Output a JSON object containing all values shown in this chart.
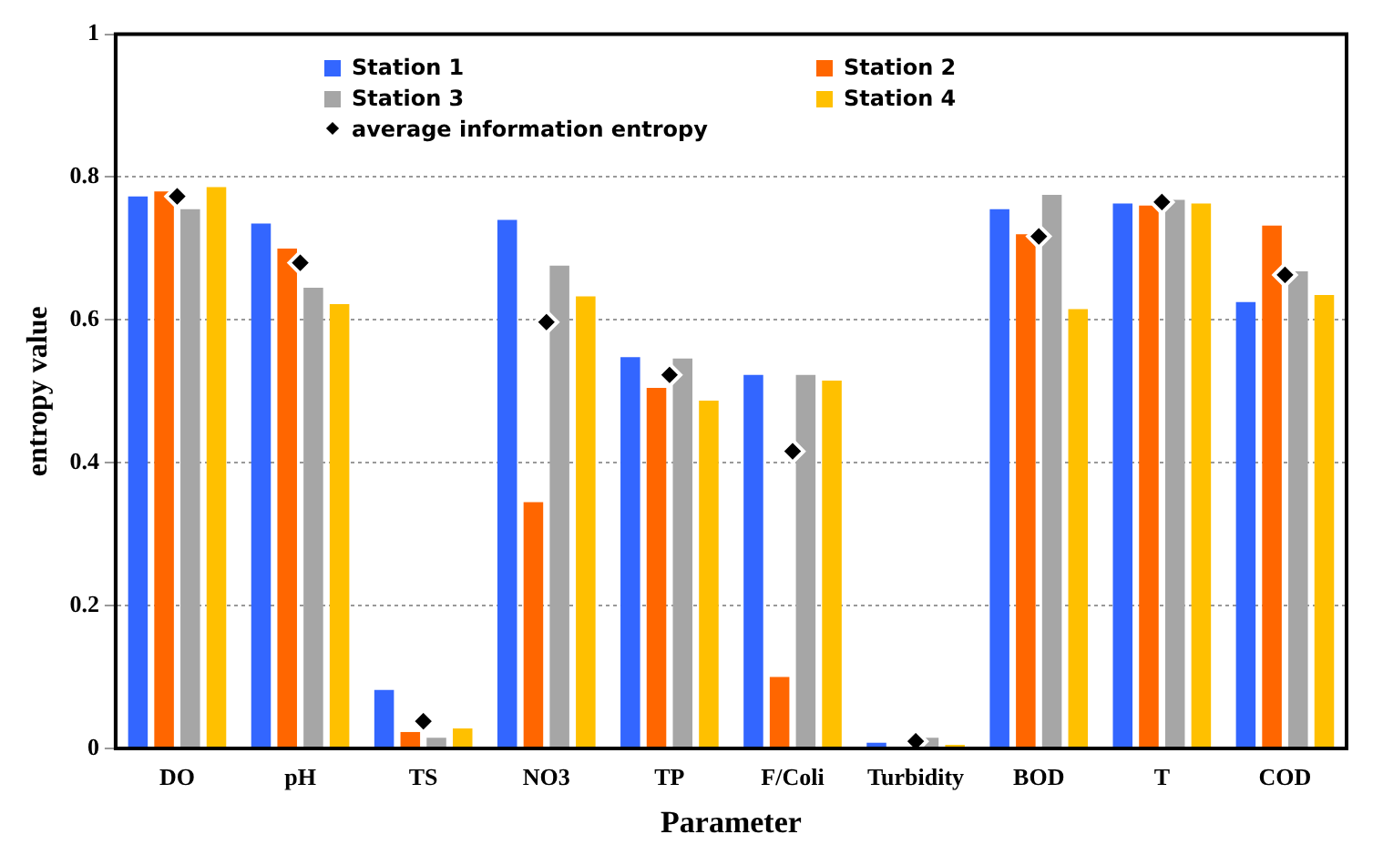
{
  "chart_data": {
    "type": "bar",
    "xlabel": "Parameter",
    "ylabel": "entropy value",
    "categories": [
      "DO",
      "pH",
      "TS",
      "NO3",
      "TP",
      "F/Coli",
      "Turbidity",
      "BOD",
      "T",
      "COD"
    ],
    "series": [
      {
        "name": "Station 1",
        "color": "#3366ff",
        "values": [
          0.773,
          0.735,
          0.082,
          0.74,
          0.548,
          0.523,
          0.008,
          0.755,
          0.763,
          0.625
        ]
      },
      {
        "name": "Station 2",
        "color": "#ff6600",
        "values": [
          0.78,
          0.7,
          0.023,
          0.345,
          0.505,
          0.1,
          null,
          0.72,
          0.76,
          0.732
        ]
      },
      {
        "name": "Station 3",
        "color": "#a6a6a6",
        "values": [
          0.755,
          0.645,
          0.015,
          0.676,
          0.546,
          0.523,
          0.015,
          0.775,
          0.768,
          0.668
        ]
      },
      {
        "name": "Station 4",
        "color": "#ffc000",
        "values": [
          0.786,
          0.622,
          0.028,
          0.633,
          0.487,
          0.515,
          0.005,
          0.615,
          0.763,
          0.635
        ]
      },
      {
        "name": "average information entropy",
        "type": "scatter",
        "marker": "diamond",
        "color": "#000000",
        "values": [
          0.773,
          0.68,
          0.038,
          0.597,
          0.523,
          0.416,
          0.01,
          0.717,
          0.765,
          0.663
        ]
      }
    ],
    "ylim": [
      0,
      1
    ],
    "yticks": [
      0,
      0.2,
      0.4,
      0.6,
      0.8,
      1
    ],
    "grid": "y",
    "legend": "top"
  }
}
